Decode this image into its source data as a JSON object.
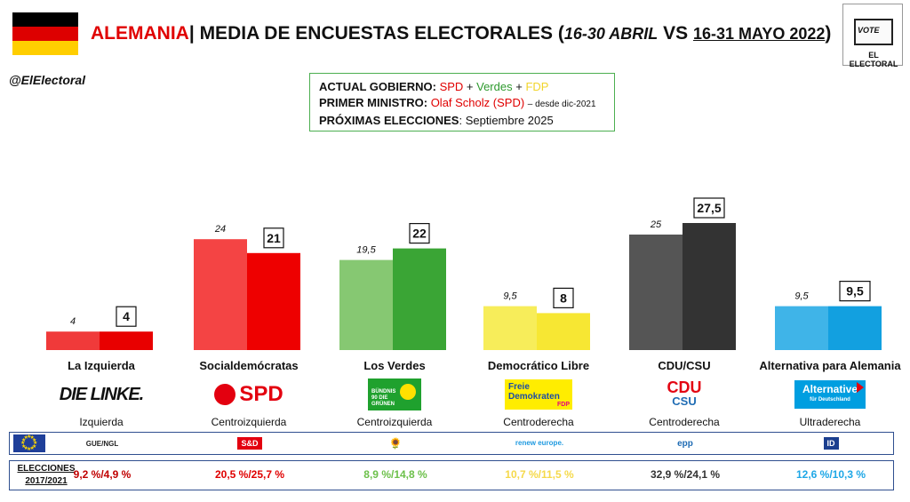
{
  "header": {
    "country": "ALEMANIA",
    "separator": "|",
    "title": "MEDIA DE ENCUESTAS ELECTORALES",
    "period_open": "(",
    "period_1": "16-30 ABRIL",
    "period_vs": " VS ",
    "period_2": "16-31 MAYO 2022",
    "period_close": ")"
  },
  "logo": {
    "vote": "VOTE",
    "name": "EL ELECTORAL"
  },
  "handle": "@ElElectoral",
  "government": {
    "gov_label": "ACTUAL GOBIERNO:",
    "gov_spd": "SPD",
    "gov_plus1": " + ",
    "gov_verdes": "Verdes",
    "gov_plus2": " + ",
    "gov_fdp": "FDP",
    "pm_label": "PRIMER MINISTRO:",
    "pm_name": "Olaf Scholz (SPD)",
    "pm_since": "– desde dic-2021",
    "next_label": "PRÓXIMAS ELECCIONES",
    "next_value": ": Septiembre 2025"
  },
  "chart_data": {
    "type": "bar",
    "categories": [
      "La Izquierda",
      "Socialdemócratas",
      "Los Verdes",
      "Democrático Libre",
      "CDU/CSU",
      "Alternativa para Alemania"
    ],
    "series": [
      {
        "values": [
          4,
          24,
          19.5,
          9.5,
          25,
          9.5
        ],
        "labels": [
          "4",
          "24",
          "19,5",
          "9,5",
          "25",
          "9,5"
        ]
      },
      {
        "values": [
          4,
          21,
          22,
          8,
          27.5,
          9.5
        ],
        "labels": [
          "4",
          "21",
          "22",
          "8",
          "27,5",
          "9,5"
        ]
      }
    ],
    "colors_prev": [
      "#f03a3a",
      "#f44444",
      "#86c872",
      "#f7ed5a",
      "#555555",
      "#3fb4e8"
    ],
    "colors_curr": [
      "#e80000",
      "#ee0000",
      "#3aa535",
      "#f7e733",
      "#333333",
      "#12a0e0"
    ],
    "ylim": [
      0,
      30
    ]
  },
  "parties": [
    {
      "name": "La Izquierda",
      "ideology": "Izquierda",
      "logo_text": "DIE LINKE.",
      "eu_group": "GUE/NGL",
      "result": "9,2 %/4,9 %",
      "color": "#c00000"
    },
    {
      "name": "Socialdemócratas",
      "ideology": "Centroizquierda",
      "logo_text": "SPD",
      "eu_group": "S&D",
      "result": "20,5 %/25,7 %",
      "color": "#e00000"
    },
    {
      "name": "Los Verdes",
      "ideology": "Centroizquierda",
      "logo_text": "BÜNDNIS 90 DIE GRÜNEN",
      "eu_group": "🌻",
      "result": "8,9 %/14,8 %",
      "color": "#6cc04a"
    },
    {
      "name": "Democrático Libre",
      "ideology": "Centroderecha",
      "logo_text": "Freie Demokraten",
      "logo_sub": "FDP",
      "eu_group": "renew europe.",
      "result": "10,7 %/11,5 %",
      "color": "#f5d94a"
    },
    {
      "name": "CDU/CSU",
      "ideology": "Centroderecha",
      "logo_text": "CDU",
      "logo_sub": "CSU",
      "eu_group": "epp",
      "result": "32,9 %/24,1 %",
      "color": "#333333"
    },
    {
      "name": "Alternativa para Alemania",
      "ideology": "Ultraderecha",
      "logo_text": "Alternative",
      "logo_sub": "für Deutschland",
      "eu_group": "ID",
      "result": "12,6 %/10,3 %",
      "color": "#1ea7e6"
    }
  ],
  "results_label": "ELECCIONES 2017/2021"
}
